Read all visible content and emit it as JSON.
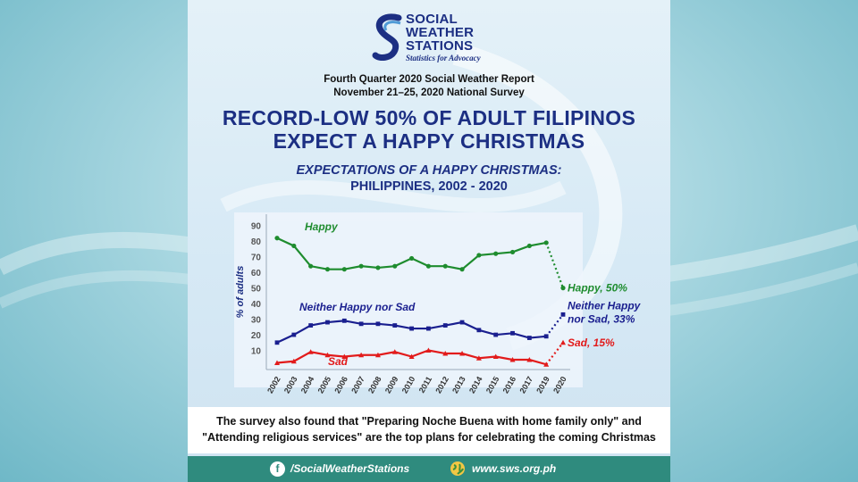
{
  "logo": {
    "line1": "SOCIAL",
    "line2": "WEATHER",
    "line3": "STATIONS",
    "tagline": "Statistics for Advocacy"
  },
  "report": {
    "line1": "Fourth Quarter 2020 Social Weather Report",
    "line2": "November 21–25, 2020  National Survey"
  },
  "headline": {
    "line1": "RECORD-LOW 50% OF ADULT FILIPINOS",
    "line2": "EXPECT A HAPPY CHRISTMAS"
  },
  "chart_data": {
    "type": "line",
    "title": "EXPECTATIONS OF A HAPPY CHRISTMAS:",
    "subtitle": "PHILIPPINES, 2002 - 2020",
    "xlabel": "",
    "ylabel": "% of adults",
    "ylim": [
      0,
      95
    ],
    "y_ticks": [
      10,
      20,
      30,
      40,
      50,
      60,
      70,
      80,
      90
    ],
    "x": [
      "2002",
      "2003",
      "2004",
      "2005",
      "2006",
      "2007",
      "2008",
      "2009",
      "2010",
      "2011",
      "2012",
      "2013",
      "2014",
      "2015",
      "2016",
      "2017",
      "2019",
      "2020"
    ],
    "grid": false,
    "series": [
      {
        "name": "Happy",
        "color": "#1e8c2e",
        "values": [
          82,
          77,
          64,
          62,
          62,
          64,
          63,
          64,
          69,
          64,
          64,
          62,
          71,
          72,
          73,
          77,
          79,
          50
        ],
        "end_label": "Happy, 50%",
        "dotted_last_segment": true
      },
      {
        "name": "Neither Happy nor Sad",
        "color": "#1a1f8f",
        "values": [
          15,
          20,
          26,
          28,
          29,
          27,
          27,
          26,
          24,
          24,
          26,
          28,
          23,
          20,
          21,
          18,
          19,
          33
        ],
        "end_label_line1": "Neither Happy",
        "end_label_line2": "nor Sad, 33%",
        "dotted_last_segment": true
      },
      {
        "name": "Sad",
        "color": "#e21b1b",
        "values": [
          2,
          3,
          9,
          7,
          6,
          7,
          7,
          9,
          6,
          10,
          8,
          8,
          5,
          6,
          4,
          4,
          1,
          15
        ],
        "end_label": "Sad, 15%",
        "dotted_last_segment": true
      }
    ]
  },
  "survey_note": {
    "line1": "The survey also found that \"Preparing Noche Buena with home family only\" and",
    "line2": "\"Attending religious services\" are the top plans for celebrating the coming Christmas"
  },
  "footer": {
    "facebook": "/SocialWeatherStations",
    "website": "www.sws.org.ph",
    "facebook_icon": "facebook-icon",
    "website_icon": "globe-icon"
  }
}
